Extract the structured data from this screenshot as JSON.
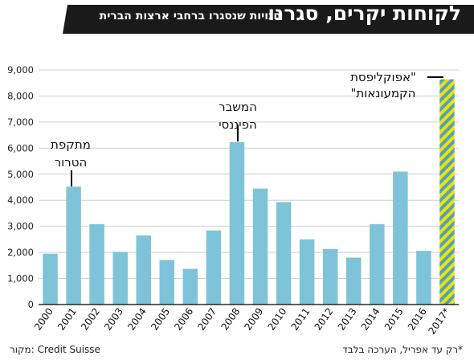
{
  "header": {
    "title": "לקוחות יקרים, סגרנו",
    "subtitle": "חנויות שנסגרו ברחבי ארצות הברית"
  },
  "footer": {
    "source": "מקור: Credit Suisse",
    "note": "*רק עד אפריל, הערכה בלבד"
  },
  "colors": {
    "bar": "#7fc3d9",
    "header_bg": "#1a1a1a",
    "stripe_yellow": "#f2e200",
    "stripe_blue": "#4fa3c0"
  },
  "chart_data": {
    "type": "bar",
    "categories": [
      "2000",
      "2001",
      "2002",
      "2003",
      "2004",
      "2005",
      "2006",
      "2007",
      "2008",
      "2009",
      "2010",
      "2011",
      "2012",
      "2013",
      "2014",
      "2015",
      "2016",
      "2017*"
    ],
    "values": [
      1950,
      4520,
      3080,
      2020,
      2650,
      1710,
      1370,
      2840,
      6230,
      4450,
      3930,
      2500,
      2130,
      1800,
      3080,
      5100,
      2060,
      8640
    ],
    "yticks": [
      "0",
      "1,000",
      "2,000",
      "3,000",
      "4,000",
      "5,000",
      "6,000",
      "7,000",
      "8,000",
      "9,000"
    ],
    "ylim": [
      0,
      9000
    ],
    "grid": true,
    "annotations": [
      {
        "label_lines": [
          "מתקפת",
          "הטרור"
        ],
        "category": "2001"
      },
      {
        "label_lines": [
          "המשבר",
          "הפיננסי"
        ],
        "category": "2008"
      },
      {
        "label_lines": [
          "\"אפוקליפסת",
          "הקמעונאות\""
        ],
        "category": "2017*"
      }
    ]
  }
}
